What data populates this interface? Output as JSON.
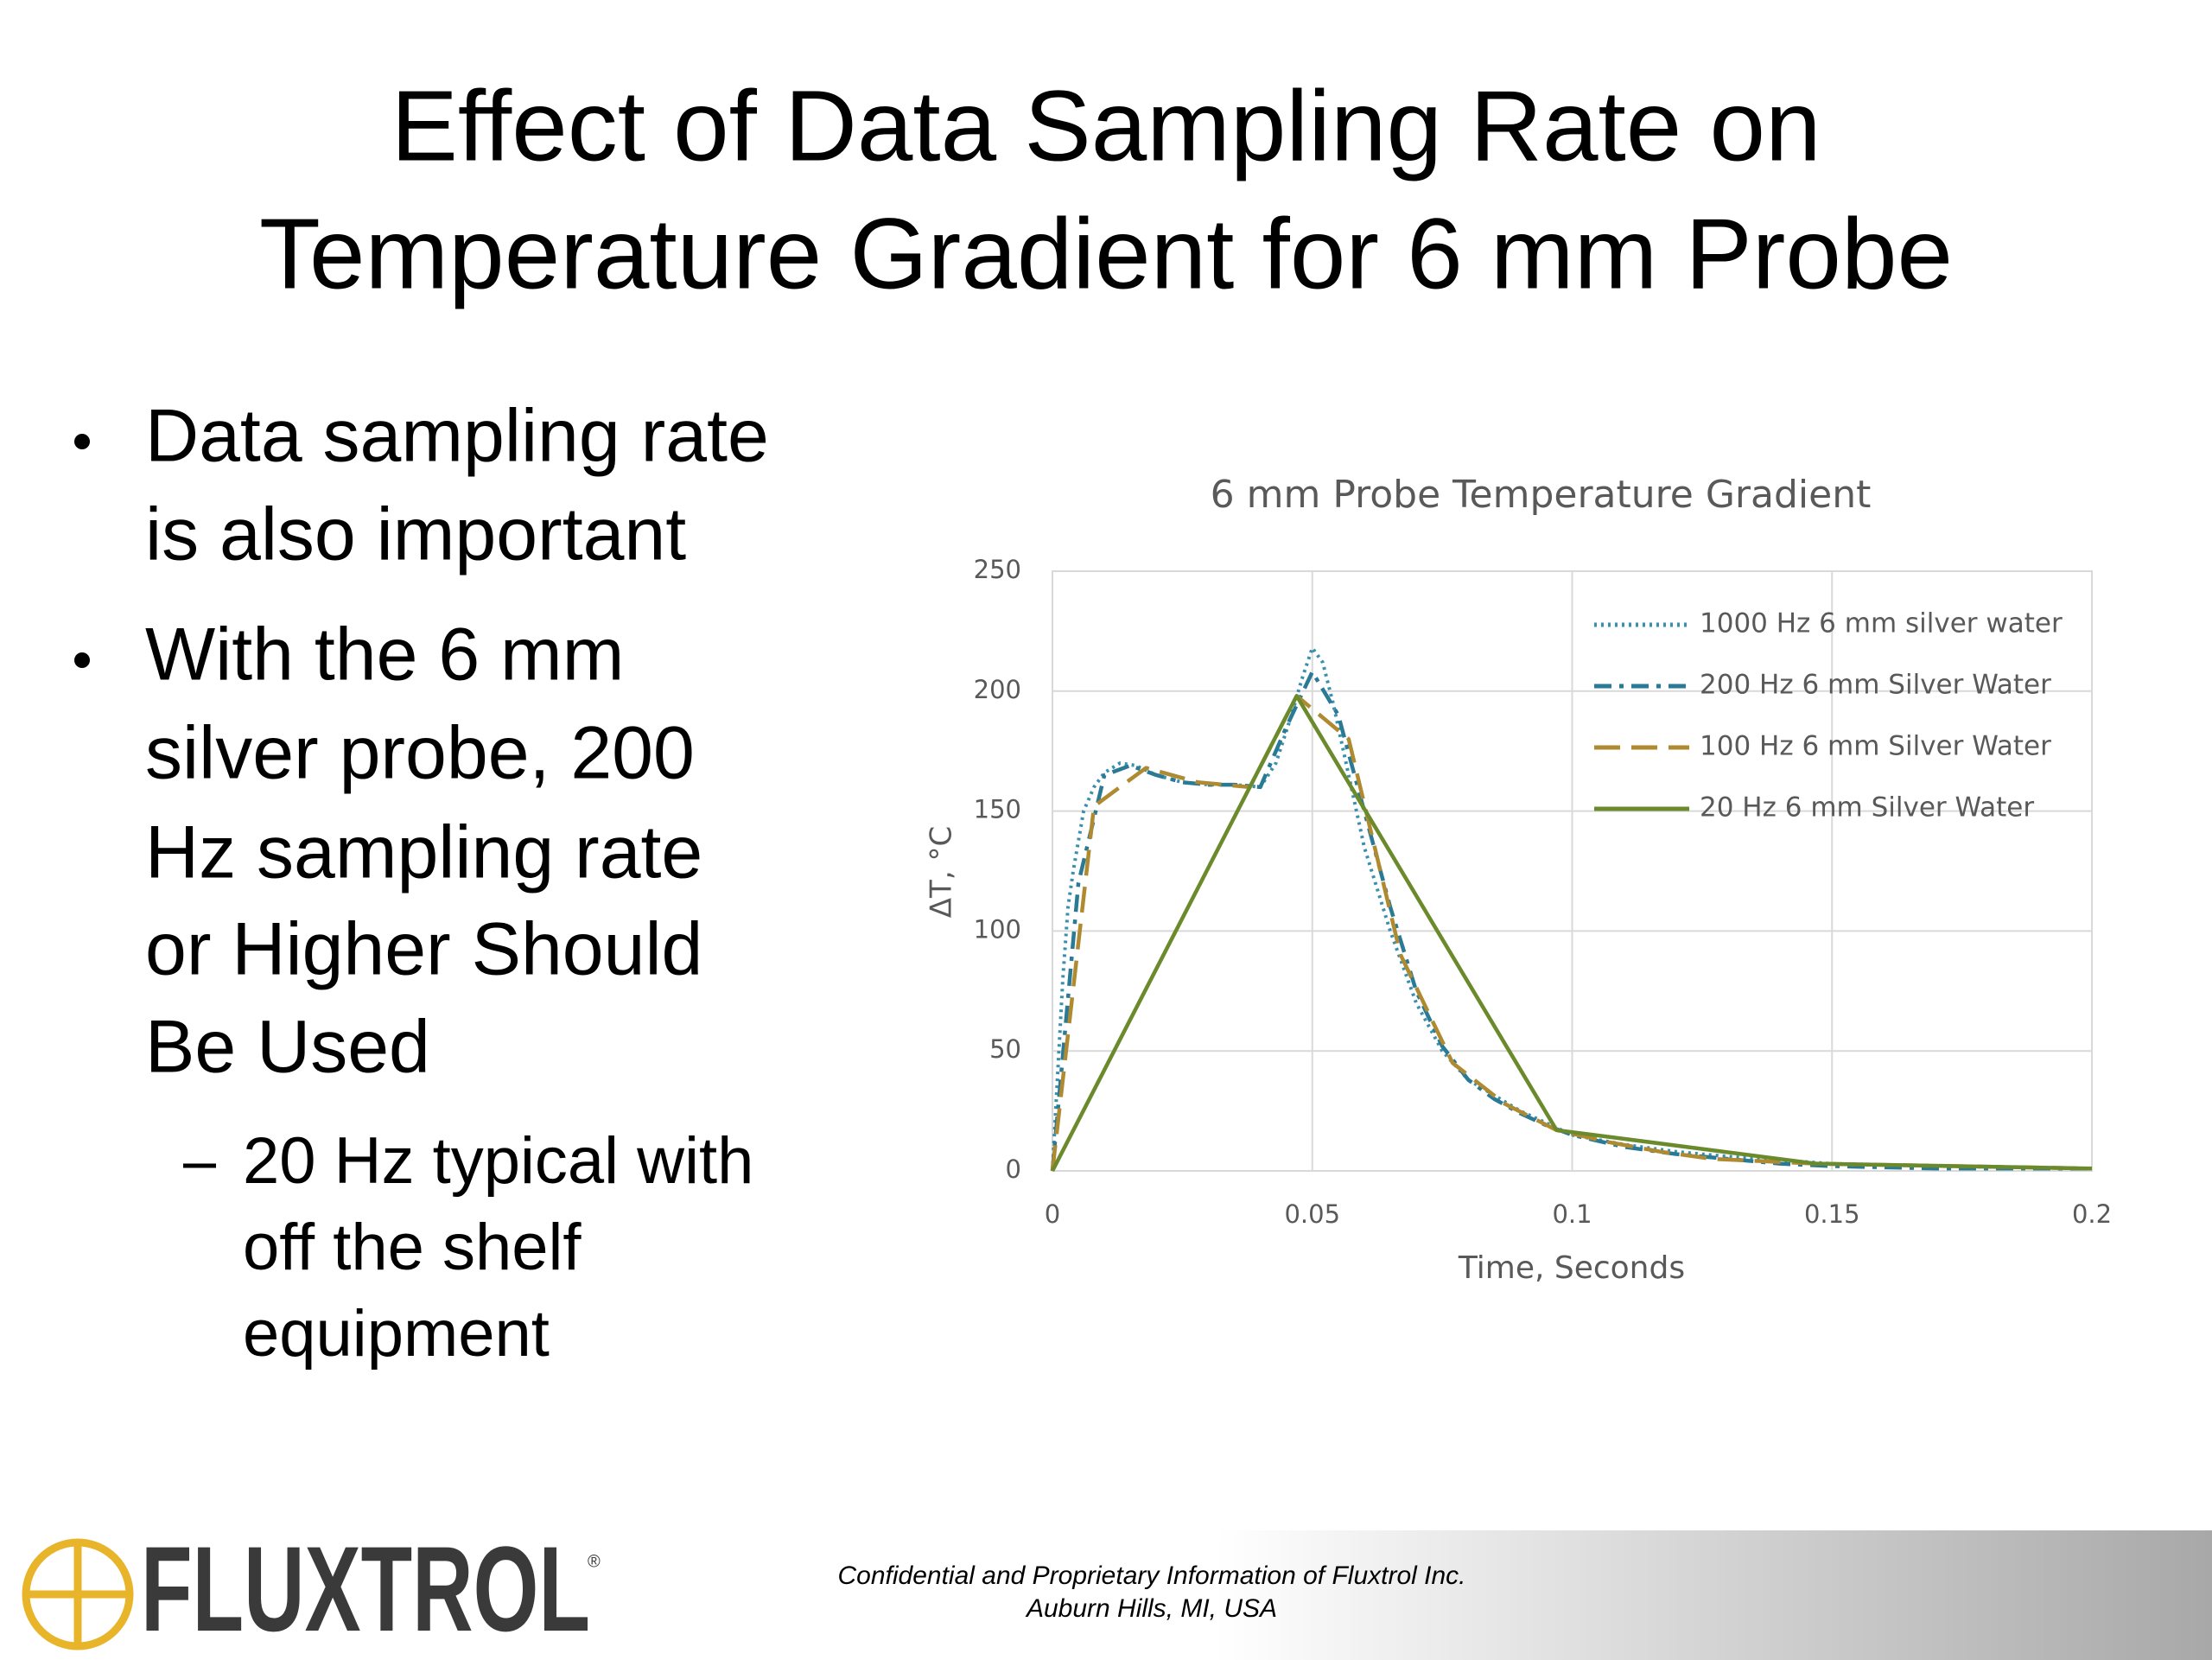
{
  "slide": {
    "title_lines": [
      "Effect of Data Sampling Rate on",
      "Temperature Gradient for 6 mm Probe"
    ],
    "bullets": [
      {
        "lines": [
          "Data sampling rate",
          "is also important"
        ]
      },
      {
        "lines": [
          "With the 6 mm",
          "silver probe, 200",
          "Hz sampling rate",
          "or Higher Should",
          "Be Used"
        ]
      }
    ],
    "sub_bullet_lines": [
      "20 Hz typical with",
      "off the shelf",
      "equipment"
    ]
  },
  "chart_data": {
    "type": "line",
    "title": "6 mm Probe Temperature Gradient",
    "x_label": "Time, Seconds",
    "y_label": "ΔT, °C",
    "xlim": [
      0,
      0.2
    ],
    "xticks": [
      0,
      0.05,
      0.1,
      0.15,
      0.2
    ],
    "ylim": [
      0,
      250
    ],
    "yticks": [
      0,
      50,
      100,
      150,
      200,
      250
    ],
    "grid": true,
    "legend": "upper right",
    "series": [
      {
        "name": "1000 Hz 6 mm silver water",
        "color": "#3a8fae",
        "dash": "dotted",
        "x": [
          0,
          0.001,
          0.002,
          0.003,
          0.004,
          0.006,
          0.008,
          0.01,
          0.013,
          0.016,
          0.02,
          0.025,
          0.03,
          0.035,
          0.04,
          0.043,
          0.046,
          0.048,
          0.05,
          0.052,
          0.054,
          0.057,
          0.06,
          0.065,
          0.07,
          0.075,
          0.08,
          0.09,
          0.1,
          0.11,
          0.12,
          0.13,
          0.15,
          0.17,
          0.2
        ],
        "values": [
          0,
          40,
          80,
          110,
          125,
          150,
          160,
          166,
          170,
          169,
          165,
          162,
          161,
          161,
          160,
          170,
          190,
          205,
          218,
          212,
          195,
          165,
          135,
          100,
          70,
          50,
          38,
          25,
          15,
          11,
          8,
          6,
          3,
          2,
          1
        ]
      },
      {
        "name": "200 Hz 6 mm Silver Water",
        "color": "#2a7a95",
        "dash": "dashdot",
        "x": [
          0,
          0.005,
          0.01,
          0.015,
          0.02,
          0.025,
          0.03,
          0.035,
          0.04,
          0.045,
          0.05,
          0.055,
          0.06,
          0.065,
          0.07,
          0.075,
          0.08,
          0.085,
          0.09,
          0.095,
          0.1,
          0.11,
          0.12,
          0.13,
          0.14,
          0.15,
          0.17,
          0.2
        ],
        "values": [
          0,
          120,
          165,
          169,
          165,
          162,
          161,
          161,
          160,
          185,
          208,
          190,
          150,
          110,
          75,
          52,
          38,
          30,
          24,
          19,
          15,
          10,
          7,
          5,
          3,
          2,
          1,
          1
        ]
      },
      {
        "name": "100 Hz 6 mm Silver Water",
        "color": "#b08a30",
        "dash": "dashed",
        "x": [
          0,
          0.008,
          0.018,
          0.028,
          0.038,
          0.047,
          0.057,
          0.067,
          0.077,
          0.087,
          0.097,
          0.107,
          0.117,
          0.127,
          0.147,
          0.2
        ],
        "values": [
          0,
          152,
          168,
          162,
          160,
          198,
          180,
          90,
          45,
          28,
          17,
          12,
          8,
          5,
          3,
          1
        ]
      },
      {
        "name": "20 Hz 6 mm Silver Water",
        "color": "#6b8a2c",
        "dash": "solid",
        "x": [
          0,
          0.047,
          0.097,
          0.147,
          0.2
        ],
        "values": [
          0,
          198,
          17,
          3,
          1
        ]
      }
    ]
  },
  "footer": {
    "logo": "FLUXTROL",
    "logo_mark": "®",
    "lines": [
      "Confidential and Proprietary Information of Fluxtrol Inc.",
      "Auburn Hills, MI, USA"
    ]
  }
}
